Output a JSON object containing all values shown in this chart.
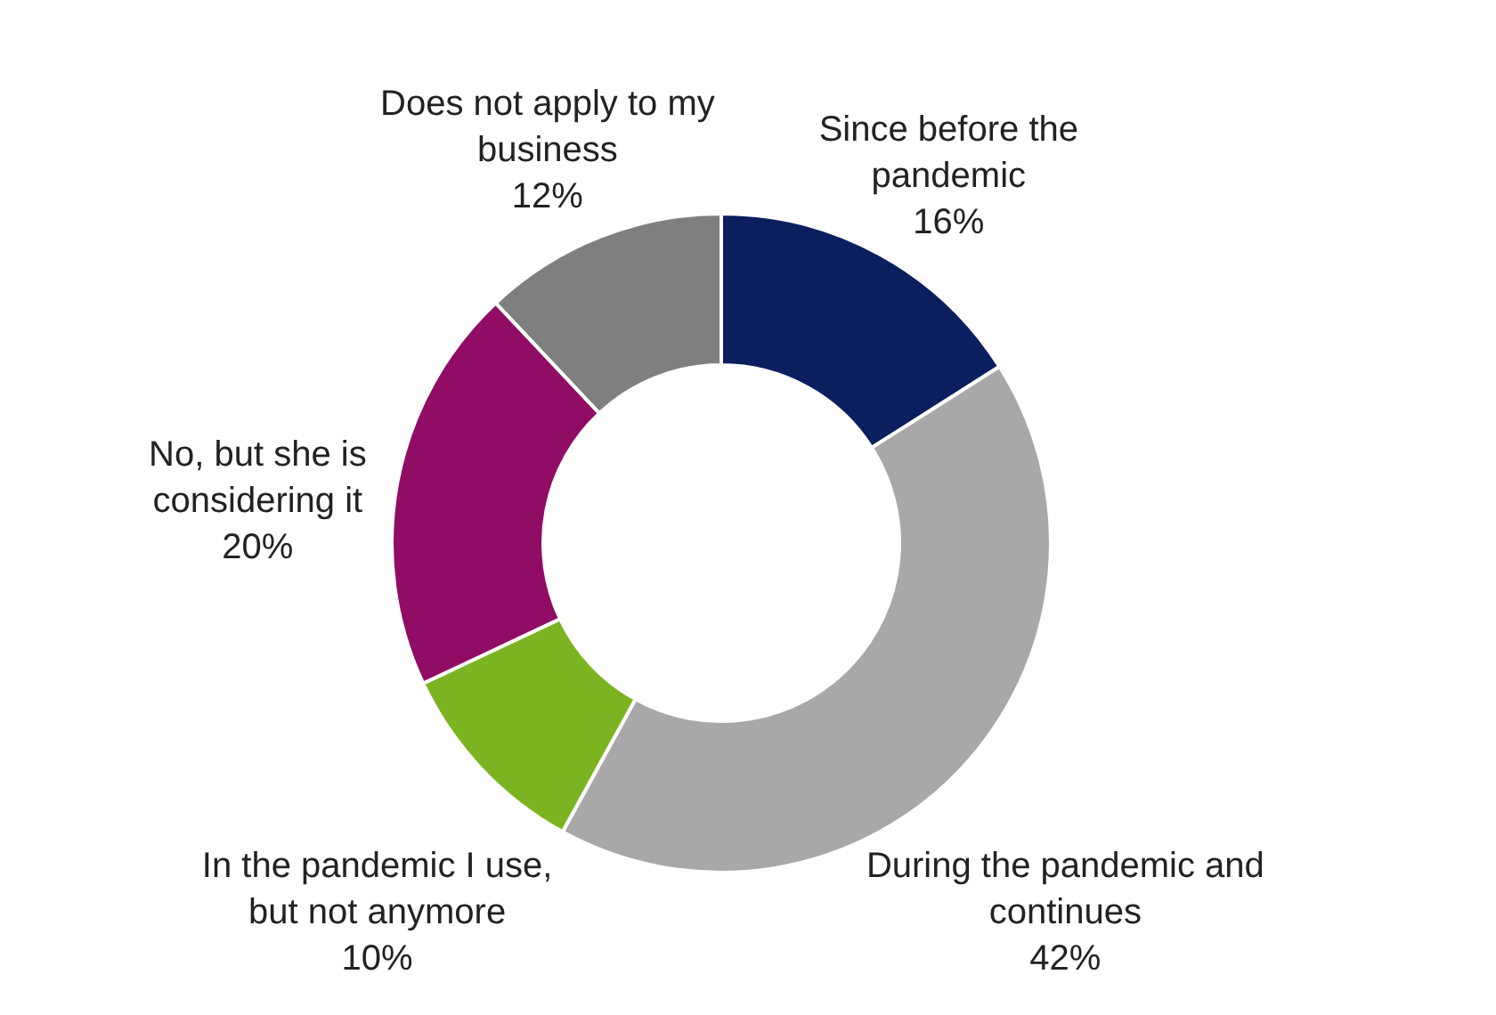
{
  "chart_data": {
    "type": "donut",
    "categories": [
      "Since before the pandemic",
      "During the pandemic and continues",
      "In the pandemic I use, but not anymore",
      "No, but she is considering it",
      "Does not apply to my business"
    ],
    "values": [
      16,
      42,
      10,
      20,
      12
    ],
    "value_labels": [
      "16%",
      "42%",
      "10%",
      "20%",
      "12%"
    ],
    "colors": [
      "#0b1f5e",
      "#a8a8a8",
      "#7cb421",
      "#910d65",
      "#7f7f7f"
    ]
  }
}
